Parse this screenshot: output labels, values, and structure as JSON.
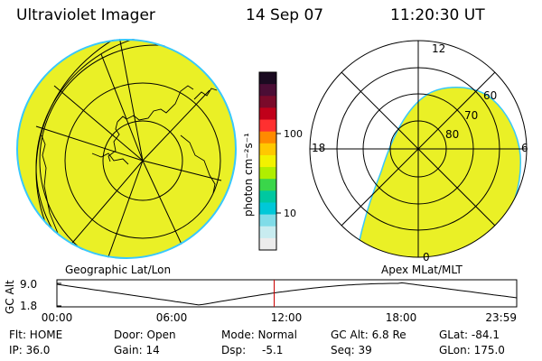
{
  "header": {
    "instrument": "Ultraviolet Imager",
    "date": "14 Sep 07",
    "time": "11:20:30 UT"
  },
  "colorbar": {
    "units_label": "photon cm⁻²s⁻¹",
    "tick_labels": [
      "100",
      "10"
    ],
    "colors_top_to_bottom": [
      "#1a0a20",
      "#4b0d35",
      "#7a0a2a",
      "#c0001a",
      "#ff3030",
      "#ff8a00",
      "#ffc800",
      "#f2f200",
      "#b0ee00",
      "#3ad64a",
      "#00c8a0",
      "#00c8d8",
      "#80dce8",
      "#c8ecf0",
      "#ececec"
    ]
  },
  "left_map": {
    "caption": "Geographic Lat/Lon",
    "fill_color": "#eaf026"
  },
  "right_map": {
    "caption": "Apex MLat/MLT",
    "fill_color": "#eaf026",
    "mlt_labels": [
      "12",
      "6",
      "18",
      "0"
    ],
    "mlat_labels": [
      "60",
      "70",
      "80"
    ]
  },
  "altitude_plot": {
    "ylabel": "GC Alt",
    "y_ticks": [
      "9.0",
      "1.8"
    ],
    "x_ticks": [
      "00:00",
      "06:00",
      "12:00",
      "18:00",
      "23:59"
    ],
    "current_time_hours": 11.34,
    "marker_color": "#cc0000"
  },
  "status": {
    "flt": "Flt: HOME",
    "door": "Door: Open",
    "mode": "Mode: Normal",
    "gc_alt": "GC Alt: 6.8 Re",
    "glat": "GLat: -84.1",
    "ip": "IP: 36.0",
    "gain": "Gain: 14",
    "dsp_label": "Dsp:",
    "dsp_value": "-5.1",
    "seq": "Seq: 39",
    "glon": "GLon: 175.0"
  }
}
